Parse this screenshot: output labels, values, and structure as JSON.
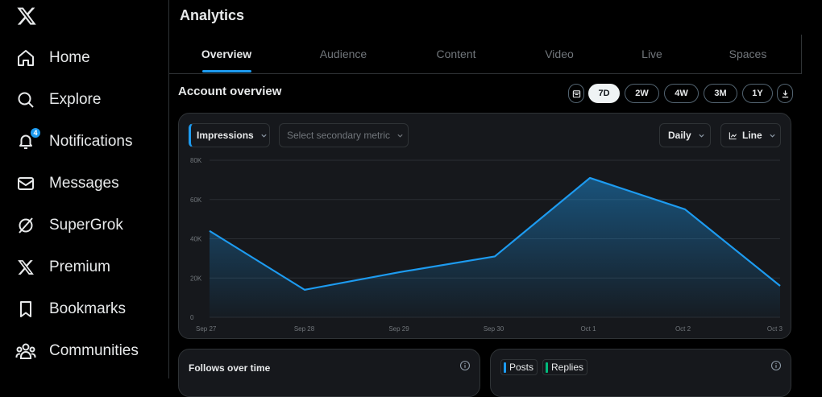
{
  "sidebar": {
    "items": [
      {
        "label": "Home",
        "icon": "home-icon"
      },
      {
        "label": "Explore",
        "icon": "search-icon"
      },
      {
        "label": "Notifications",
        "icon": "bell-icon",
        "badge": "4"
      },
      {
        "label": "Messages",
        "icon": "envelope-icon"
      },
      {
        "label": "SuperGrok",
        "icon": "grok-icon"
      },
      {
        "label": "Premium",
        "icon": "x-logo-icon"
      },
      {
        "label": "Bookmarks",
        "icon": "bookmark-icon"
      },
      {
        "label": "Communities",
        "icon": "people-icon"
      }
    ]
  },
  "page": {
    "title": "Analytics",
    "tabs": [
      "Overview",
      "Audience",
      "Content",
      "Video",
      "Live",
      "Spaces"
    ],
    "active_tab": "Overview"
  },
  "overview": {
    "title": "Account overview",
    "ranges": [
      "7D",
      "2W",
      "4W",
      "3M",
      "1Y"
    ],
    "active_range": "7D",
    "primary_metric": "Impressions",
    "secondary_placeholder": "Select secondary metric",
    "interval": "Daily",
    "chart_style": "Line"
  },
  "chart_data": {
    "type": "area",
    "x": [
      "Sep 27",
      "Sep 28",
      "Sep 29",
      "Sep 30",
      "Oct 1",
      "Oct 2",
      "Oct 3"
    ],
    "series": [
      {
        "values": [
          44000,
          14000,
          23000,
          31000,
          71000,
          55000,
          16000
        ]
      }
    ],
    "yticks": [
      "0",
      "20K",
      "40K",
      "60K",
      "80K"
    ],
    "ylim": [
      0,
      80000
    ],
    "grid": true,
    "color": "#1d9bf0"
  },
  "bottom": {
    "follows_title": "Follows over time",
    "posts_label": "Posts",
    "replies_label": "Replies"
  },
  "colors": {
    "accent": "#1d9bf0",
    "replies": "#00ba7c"
  }
}
